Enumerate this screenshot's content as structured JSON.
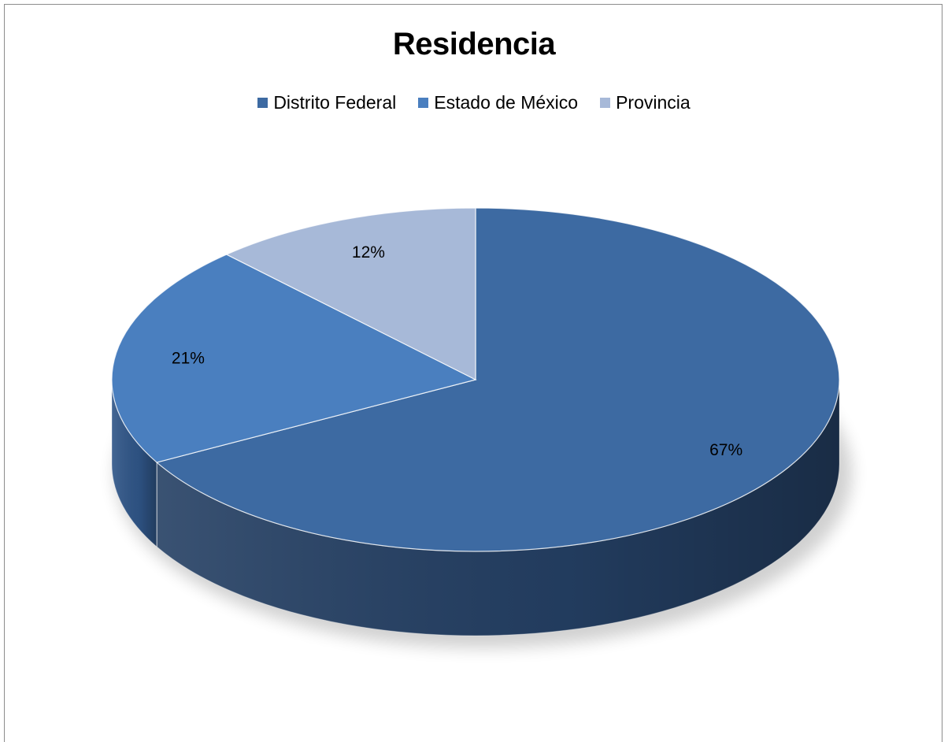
{
  "chart_data": {
    "type": "pie",
    "title": "Residencia",
    "legend_position": "top",
    "categories": [
      "Distrito Federal",
      "Estado de México",
      "Provincia"
    ],
    "values": [
      67,
      21,
      12
    ],
    "labels": [
      "67%",
      "21%",
      "12%"
    ],
    "colors": [
      "#3d6aa2",
      "#4a7fbf",
      "#a7b9d8"
    ],
    "side_colors": [
      "#243f63",
      "#2f5587",
      "#6c81a6"
    ]
  }
}
